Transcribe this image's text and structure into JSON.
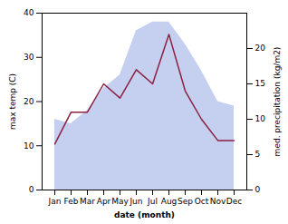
{
  "chart_data": {
    "type": "area",
    "categories": [
      "Jan",
      "Feb",
      "Mar",
      "Apr",
      "May",
      "Jun",
      "Jul",
      "Aug",
      "Sep",
      "Oct",
      "Nov",
      "Dec"
    ],
    "xlabel": "date (month)",
    "ylabel": "max temp (C)",
    "y2label": "med. precipitation (kg/m2)",
    "series": [
      {
        "type": "area",
        "color": "#c5cff0",
        "values": [
          16,
          15,
          18,
          23,
          26,
          36,
          38,
          38,
          33,
          27,
          20,
          19
        ]
      },
      {
        "type": "line",
        "color": "#8b2040",
        "axis": "y2",
        "values": [
          6.5,
          11,
          11,
          15,
          13,
          17,
          15,
          22,
          14,
          10,
          7,
          7
        ]
      }
    ],
    "ylim": [
      0,
      40
    ],
    "yticks": [
      0,
      10,
      20,
      30,
      40
    ],
    "y2lim": [
      0,
      25
    ],
    "y2ticks": [
      0,
      5,
      10,
      15,
      20
    ]
  }
}
